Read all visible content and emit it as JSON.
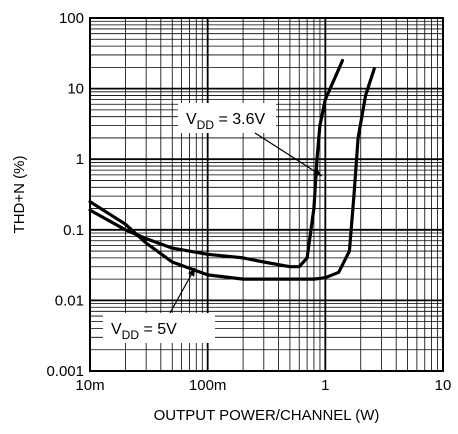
{
  "chart_data": {
    "type": "line",
    "title": "",
    "xlabel": "OUTPUT POWER/CHANNEL (W)",
    "ylabel": "THD+N (%)",
    "xscale": "log",
    "yscale": "log",
    "xlim": [
      0.01,
      10
    ],
    "ylim": [
      0.001,
      100
    ],
    "grid": true,
    "x_ticks": [
      {
        "value": 0.01,
        "label": "10m"
      },
      {
        "value": 0.1,
        "label": "100m"
      },
      {
        "value": 1,
        "label": "1"
      },
      {
        "value": 10,
        "label": "10"
      }
    ],
    "y_ticks": [
      {
        "value": 0.001,
        "label": "0.001"
      },
      {
        "value": 0.01,
        "label": "0.01"
      },
      {
        "value": 0.1,
        "label": "0.1"
      },
      {
        "value": 1,
        "label": "1"
      },
      {
        "value": 10,
        "label": "10"
      },
      {
        "value": 100,
        "label": "100"
      }
    ],
    "series": [
      {
        "name": "VDD = 3.6V",
        "label_main": "V",
        "label_sub": "DD",
        "label_rest": " = 3.6V",
        "x": [
          0.01,
          0.02,
          0.03,
          0.05,
          0.1,
          0.2,
          0.3,
          0.5,
          0.6,
          0.7,
          0.8,
          0.85,
          0.9,
          1.0,
          1.2,
          1.4
        ],
        "y": [
          0.19,
          0.1,
          0.075,
          0.055,
          0.045,
          0.04,
          0.035,
          0.03,
          0.03,
          0.04,
          0.2,
          1.0,
          3.0,
          7.0,
          14.0,
          25.0
        ]
      },
      {
        "name": "VDD = 5V",
        "label_main": "V",
        "label_sub": "DD",
        "label_rest": " = 5V",
        "x": [
          0.01,
          0.02,
          0.03,
          0.05,
          0.1,
          0.2,
          0.5,
          0.8,
          1.0,
          1.3,
          1.6,
          1.75,
          1.9,
          2.2,
          2.6
        ],
        "y": [
          0.25,
          0.12,
          0.065,
          0.035,
          0.023,
          0.02,
          0.02,
          0.02,
          0.021,
          0.025,
          0.05,
          0.3,
          2.0,
          8.0,
          19.0
        ]
      }
    ]
  }
}
